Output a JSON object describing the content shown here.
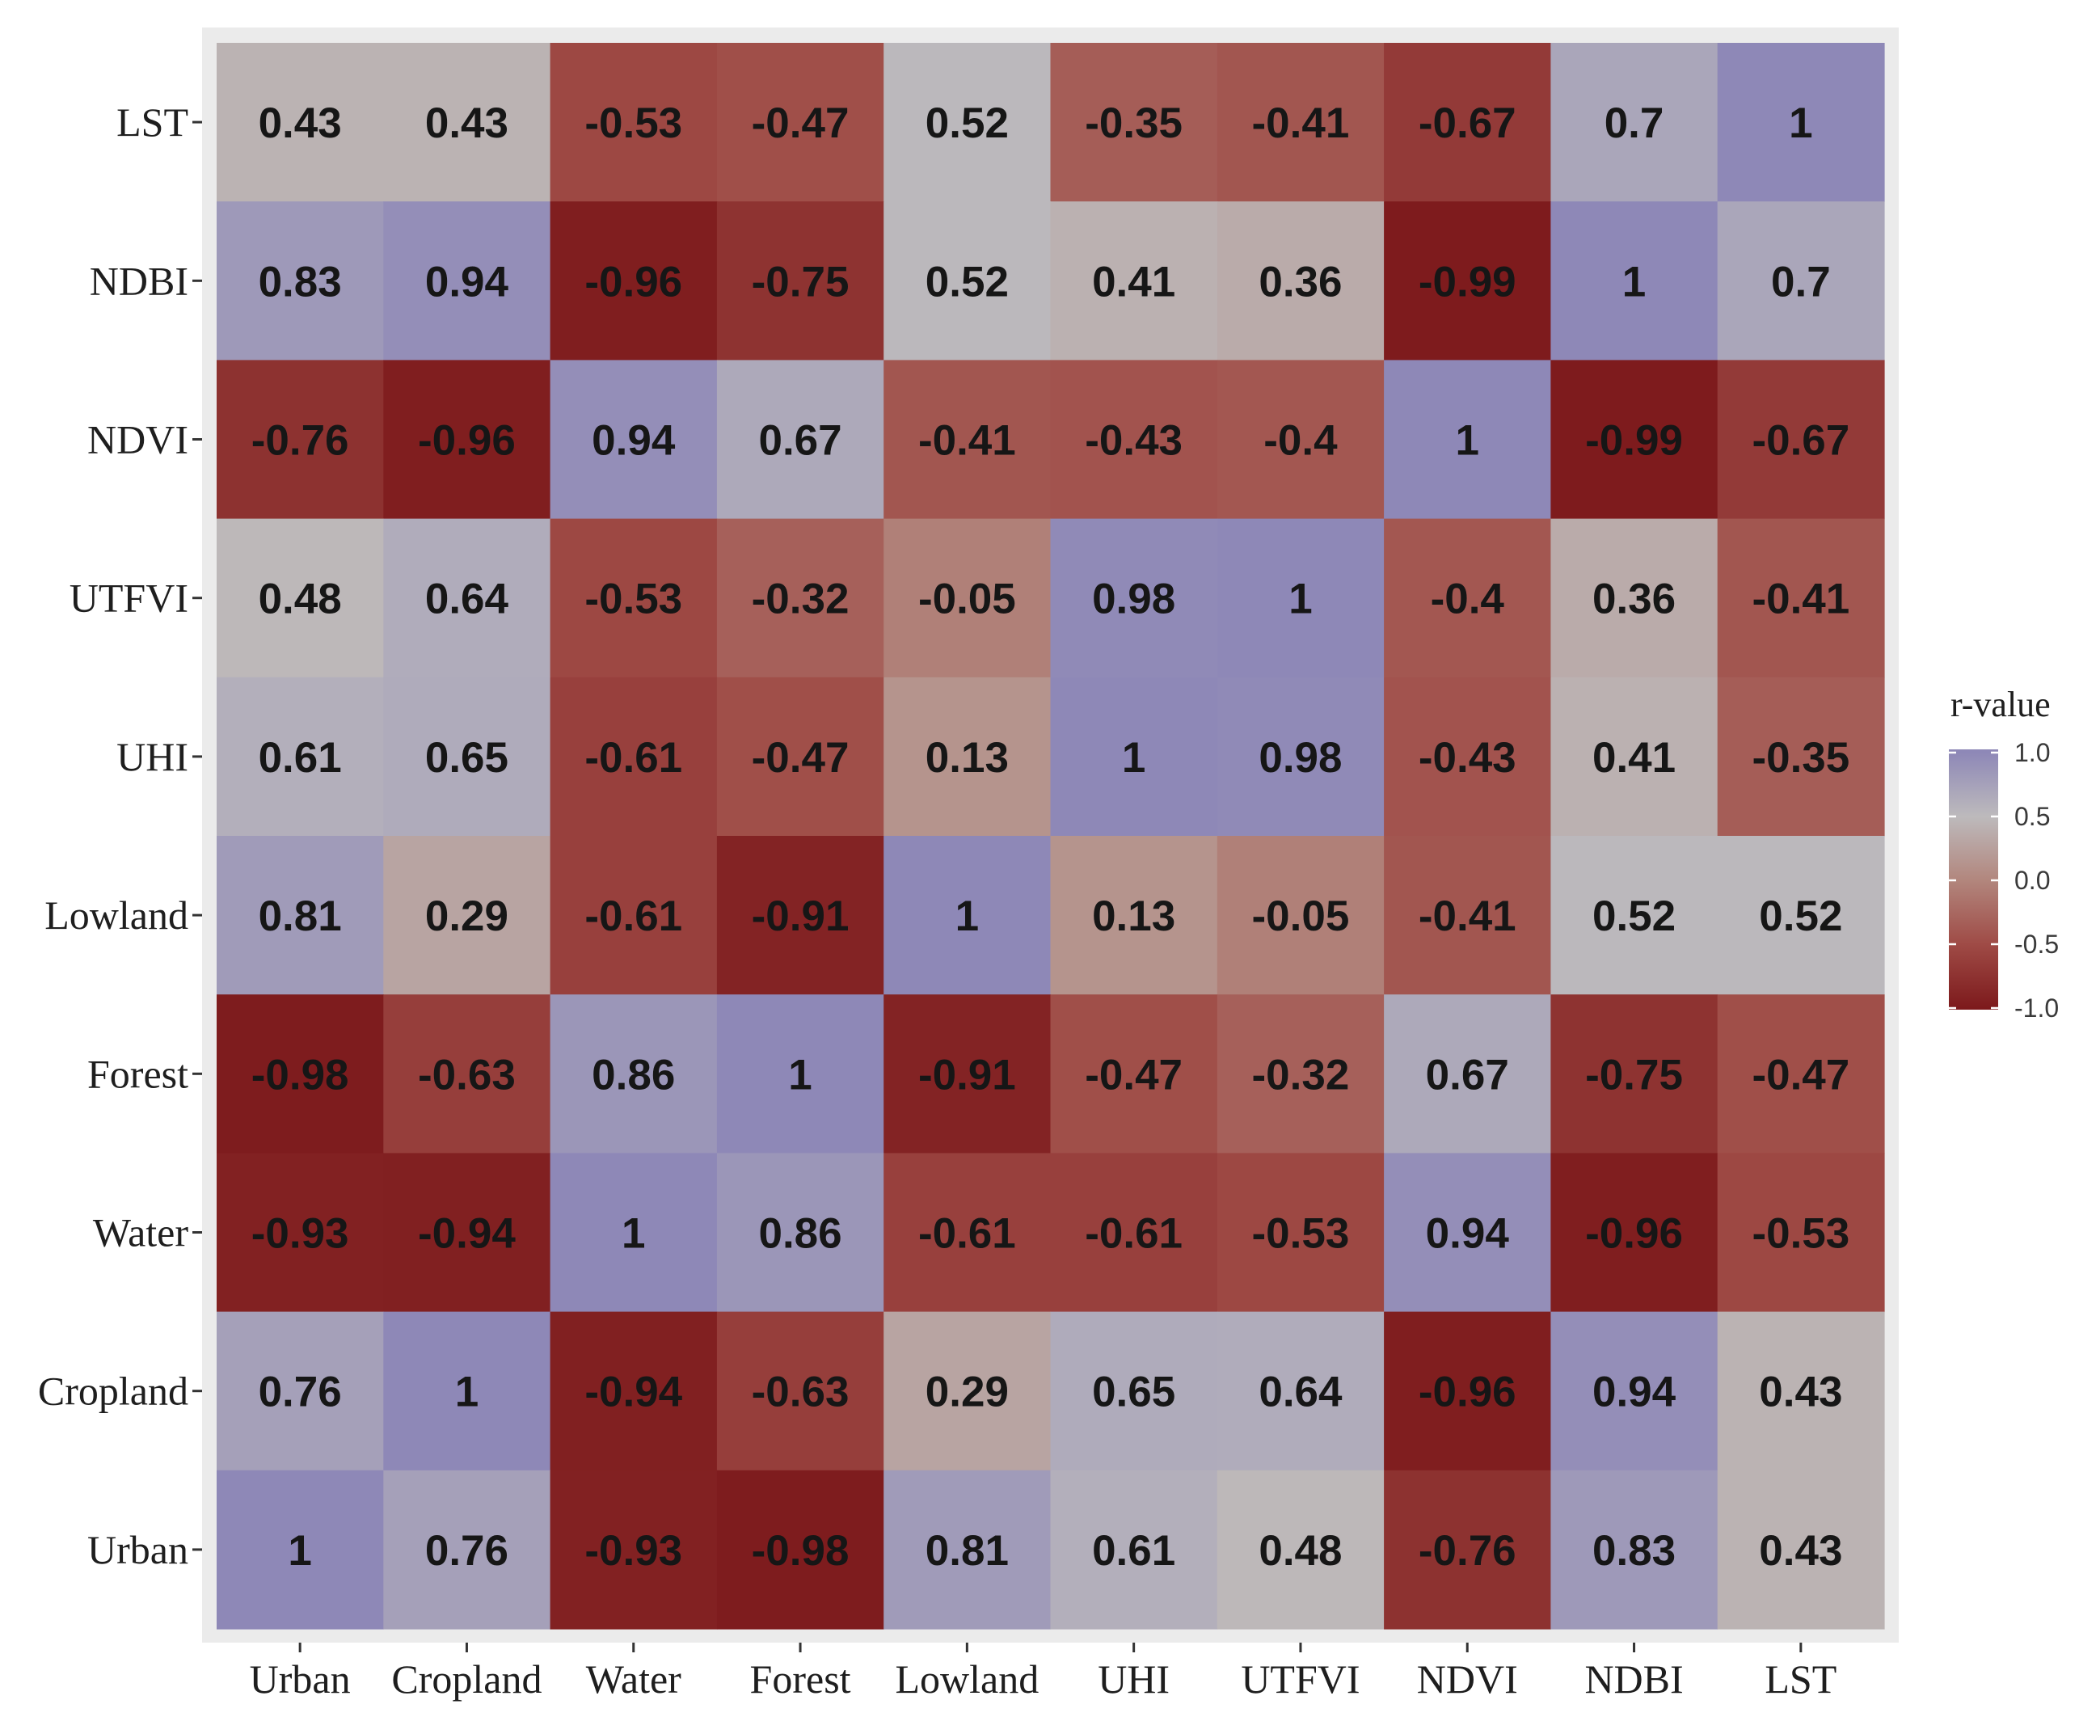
{
  "chart_data": {
    "type": "heatmap",
    "x_categories": [
      "Urban",
      "Cropland",
      "Water",
      "Forest",
      "Lowland",
      "UHI",
      "UTFVI",
      "NDVI",
      "NDBI",
      "LST"
    ],
    "y_categories": [
      "LST",
      "NDBI",
      "NDVI",
      "UTFVI",
      "UHI",
      "Lowland",
      "Forest",
      "Water",
      "Cropland",
      "Urban"
    ],
    "values": [
      [
        0.43,
        0.43,
        -0.53,
        -0.47,
        0.52,
        -0.35,
        -0.41,
        -0.67,
        0.7,
        1
      ],
      [
        0.83,
        0.94,
        -0.96,
        -0.75,
        0.52,
        0.41,
        0.36,
        -0.99,
        1,
        0.7
      ],
      [
        -0.76,
        -0.96,
        0.94,
        0.67,
        -0.41,
        -0.43,
        -0.4,
        1,
        -0.99,
        -0.67
      ],
      [
        0.48,
        0.64,
        -0.53,
        -0.32,
        -0.05,
        0.98,
        1,
        -0.4,
        0.36,
        -0.41
      ],
      [
        0.61,
        0.65,
        -0.61,
        -0.47,
        0.13,
        1,
        0.98,
        -0.43,
        0.41,
        -0.35
      ],
      [
        0.81,
        0.29,
        -0.61,
        -0.91,
        1,
        0.13,
        -0.05,
        -0.41,
        0.52,
        0.52
      ],
      [
        -0.98,
        -0.63,
        0.86,
        1,
        -0.91,
        -0.47,
        -0.32,
        0.67,
        -0.75,
        -0.47
      ],
      [
        -0.93,
        -0.94,
        1,
        0.86,
        -0.61,
        -0.61,
        -0.53,
        0.94,
        -0.96,
        -0.53
      ],
      [
        0.76,
        1,
        -0.94,
        -0.63,
        0.29,
        0.65,
        0.64,
        -0.96,
        0.94,
        0.43
      ],
      [
        1,
        0.76,
        -0.93,
        -0.98,
        0.81,
        0.61,
        0.48,
        -0.76,
        0.83,
        0.43
      ]
    ],
    "value_range": [
      -1,
      1
    ],
    "grid": false,
    "legend": {
      "title": "r-value",
      "position": "right",
      "ticks": [
        {
          "value": 1.0,
          "label": "1.0"
        },
        {
          "value": 0.5,
          "label": "0.5"
        },
        {
          "value": 0.0,
          "label": "0.0"
        },
        {
          "value": -0.5,
          "label": "-0.5"
        },
        {
          "value": -1.0,
          "label": "-1.0"
        }
      ]
    },
    "color_scale": [
      {
        "value": -1.0,
        "color": "#7D1A1C"
      },
      {
        "value": -0.5,
        "color": "#9F4B46"
      },
      {
        "value": 0.0,
        "color": "#B2867D"
      },
      {
        "value": 0.5,
        "color": "#BDBABC"
      },
      {
        "value": 1.0,
        "color": "#8E88B7"
      }
    ],
    "panel_color": "#EBEBEB"
  }
}
